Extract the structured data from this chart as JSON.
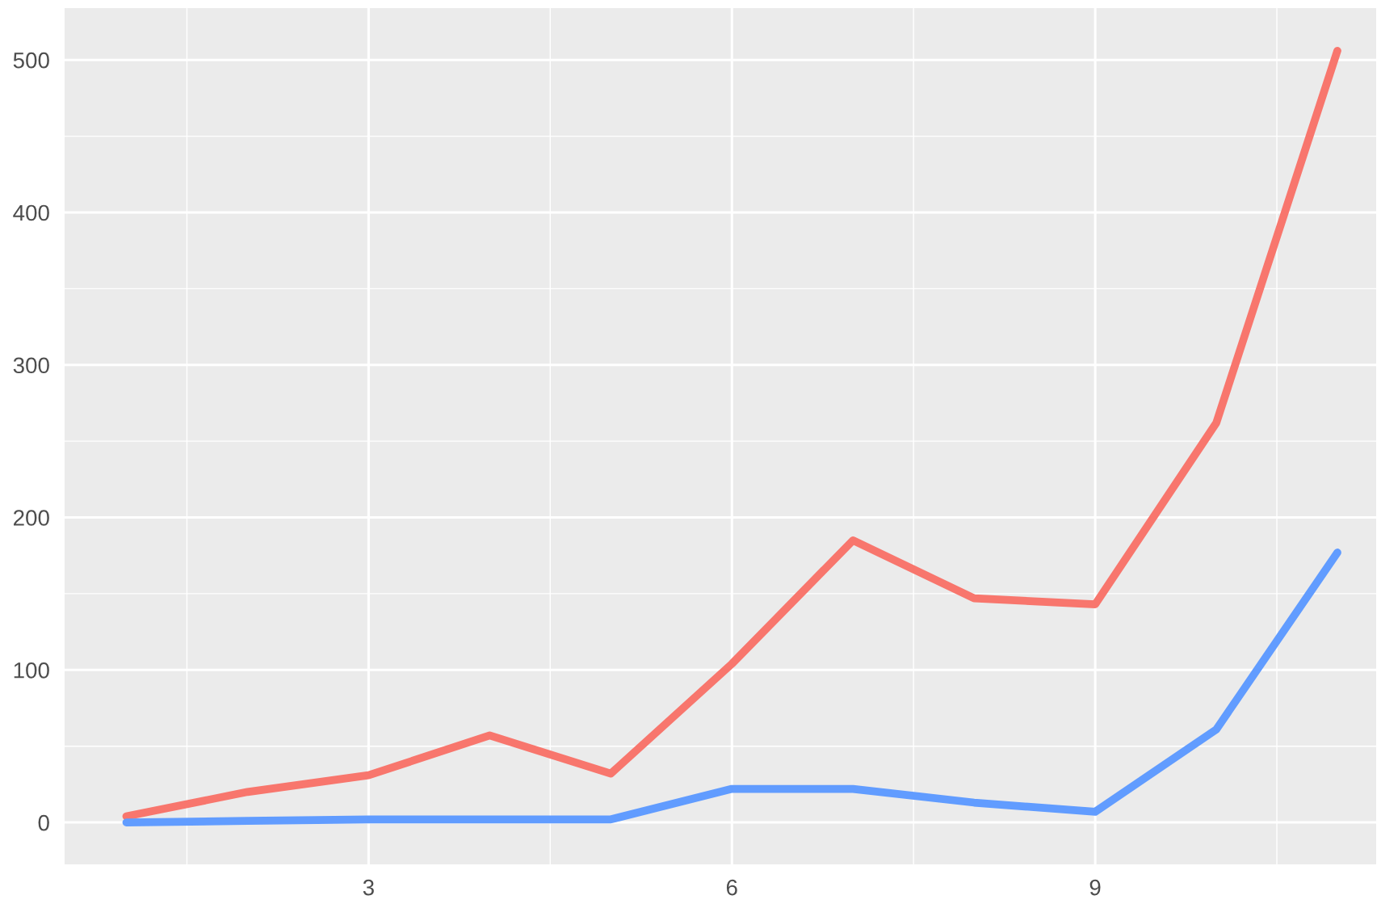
{
  "chart_data": {
    "type": "line",
    "x": [
      1,
      2,
      3,
      4,
      5,
      6,
      7,
      8,
      9,
      10,
      11
    ],
    "series": [
      {
        "color": "#f8766d",
        "values": [
          4,
          20,
          31,
          57,
          32,
          104,
          185,
          147,
          143,
          262,
          506
        ]
      },
      {
        "color": "#619cff",
        "values": [
          0,
          1,
          2,
          2,
          2,
          22,
          22,
          13,
          7,
          61,
          177
        ]
      }
    ],
    "xlim": [
      0.49,
      11.32
    ],
    "ylim": [
      -27.5,
      534
    ],
    "xticks": [
      3,
      6,
      9
    ],
    "yticks": [
      0,
      100,
      200,
      300,
      400,
      500
    ],
    "grid": true,
    "legend": false,
    "marker": "none",
    "line_style": "solid"
  }
}
